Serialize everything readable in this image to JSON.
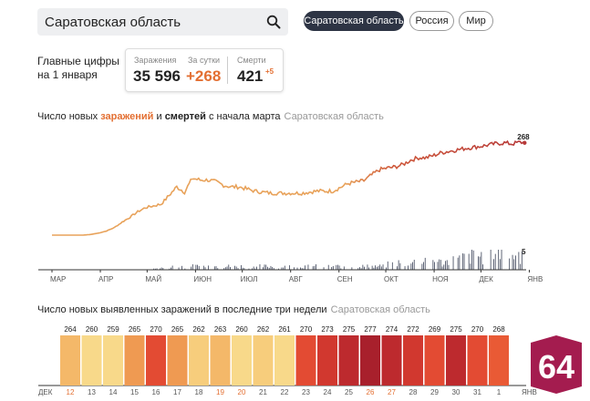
{
  "search": {
    "value": "Саратовская область"
  },
  "tabs": [
    {
      "label": "Саратовская область",
      "active": true
    },
    {
      "label": "Россия",
      "active": false
    },
    {
      "label": "Мир",
      "active": false
    }
  ],
  "main_numbers": {
    "label_line1": "Главные цифры",
    "label_line2": "на 1 января",
    "infected_label": "Заражения",
    "infected_value": "35 596",
    "daily_label": "За сутки",
    "daily_value": "+268",
    "deaths_label": "Смерти",
    "deaths_value": "421",
    "deaths_delta": "+5"
  },
  "chart1_title": {
    "part1": "Число новых ",
    "part2": "заражений",
    "part3": " и ",
    "part4": "смертей",
    "part5": " с начала марта",
    "region": "Саратовская область"
  },
  "chart2_title": {
    "text": "Число новых выявленных заражений в последние три недели",
    "region": "Саратовская область"
  },
  "colors": {
    "accent_orange": "#e36f32",
    "line_early": "#e8a25a",
    "line_late": "#b73a3a",
    "death_bars": "#4f5669",
    "tab_active_bg": "#2d3444",
    "logo_bg": "#a41c4f"
  },
  "logo": {
    "text": "64"
  },
  "chart_data": [
    {
      "type": "line",
      "title": "Число новых заражений и смертей с начала марта",
      "x_labels": [
        "МАР",
        "АПР",
        "МАЙ",
        "ИЮН",
        "ИЮЛ",
        "АВГ",
        "СЕН",
        "ОКТ",
        "НОЯ",
        "ДЕК",
        "ЯНВ"
      ],
      "series": [
        {
          "name": "заражений",
          "x": [
            0,
            10,
            20,
            25,
            30,
            35,
            40,
            45,
            50,
            55,
            60,
            65,
            70,
            75,
            80,
            85,
            90,
            95,
            100,
            105,
            110,
            115,
            120,
            130,
            140,
            150,
            160,
            170,
            180,
            190,
            200,
            205,
            210,
            215,
            220,
            225,
            230,
            235,
            240,
            245,
            250,
            255,
            260,
            265,
            270,
            275,
            280,
            285,
            290,
            295,
            300,
            303
          ],
          "values": [
            0,
            0,
            0,
            2,
            6,
            12,
            22,
            38,
            52,
            68,
            80,
            85,
            90,
            115,
            140,
            125,
            165,
            160,
            160,
            155,
            145,
            140,
            140,
            128,
            122,
            122,
            122,
            128,
            128,
            150,
            158,
            175,
            190,
            195,
            198,
            205,
            218,
            225,
            225,
            232,
            240,
            244,
            248,
            252,
            255,
            258,
            262,
            266,
            268,
            265,
            270,
            268
          ]
        },
        {
          "name": "смертей",
          "x": [
            60,
            80,
            100,
            120,
            140,
            160,
            180,
            200,
            210,
            220,
            230,
            240,
            250,
            260,
            270,
            280,
            290,
            300,
            303
          ],
          "values": [
            0,
            1,
            1,
            1,
            1,
            1,
            1,
            1,
            1,
            2,
            2,
            3,
            2,
            3,
            4,
            4,
            5,
            4,
            5
          ]
        }
      ],
      "annotations": [
        {
          "series": "заражений",
          "value": "268"
        },
        {
          "series": "смертей",
          "value": "5"
        }
      ]
    },
    {
      "type": "bar",
      "title": "Число новых выявленных заражений в последние три недели",
      "categories": [
        "12",
        "13",
        "14",
        "15",
        "16",
        "17",
        "18",
        "19",
        "20",
        "21",
        "22",
        "23",
        "24",
        "25",
        "26",
        "27",
        "28",
        "29",
        "30",
        "31",
        "1"
      ],
      "values": [
        264,
        260,
        259,
        265,
        270,
        265,
        262,
        263,
        260,
        262,
        261,
        270,
        273,
        275,
        277,
        274,
        272,
        269,
        275,
        270,
        268
      ],
      "weekend_categories": [
        "12",
        "19",
        "20",
        "26",
        "27"
      ],
      "month_labels": [
        "ДЕК",
        "ЯНВ"
      ]
    }
  ]
}
